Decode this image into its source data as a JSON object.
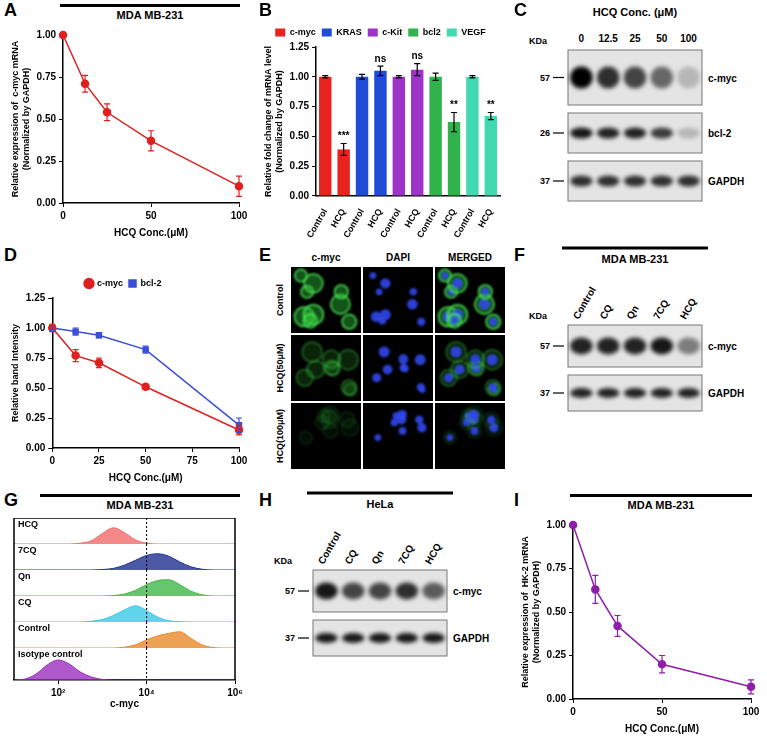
{
  "chart_data": [
    {
      "panel": "A",
      "type": "line",
      "title": "MDA MB-231",
      "x": [
        0,
        12.5,
        25,
        50,
        100
      ],
      "values": [
        1.0,
        0.71,
        0.54,
        0.37,
        0.1
      ],
      "errors": [
        0,
        0.05,
        0.05,
        0.06,
        0.06
      ],
      "color": "#e02020",
      "marker": "circle",
      "xlabel": "HCQ Conc.(μM)",
      "ylabel": [
        "Relative expression of  c-myc mRNA",
        "(Normalized by GAPDH)"
      ],
      "xlim": [
        0,
        100
      ],
      "xticks": [
        0,
        50,
        100
      ],
      "ylim": [
        0,
        1
      ],
      "yticks": [
        {
          "value": 0,
          "label": "0.00"
        },
        {
          "value": 0.25,
          "label": "0.25"
        },
        {
          "value": 0.5,
          "label": "0.50"
        },
        {
          "value": 0.75,
          "label": "0.75"
        },
        {
          "value": 1,
          "label": "1.00"
        }
      ],
      "grid": false
    },
    {
      "panel": "B",
      "type": "bar",
      "categories": [
        "Control",
        "HCQ",
        "Control",
        "HCQ",
        "Control",
        "HCQ",
        "Control",
        "HCQ",
        "Control",
        "HCQ"
      ],
      "ylabel": [
        "Relative fold change of mRNA level",
        "(Normalized by GAPDH)"
      ],
      "ylim": [
        0,
        1.25
      ],
      "yticks": [
        {
          "value": 0,
          "label": "0.00"
        },
        {
          "value": 0.25,
          "label": "0.25"
        },
        {
          "value": 0.5,
          "label": "0.50"
        },
        {
          "value": 0.75,
          "label": "0.75"
        },
        {
          "value": 1,
          "label": "1.00"
        },
        {
          "value": 1.25,
          "label": "1.25"
        }
      ],
      "grid": false,
      "legend": "top",
      "series": [
        {
          "name": "c-myc",
          "color": "#e8231e",
          "values": [
            1.0,
            0.39,
            null,
            null,
            null,
            null,
            null,
            null,
            null,
            null
          ],
          "errors": [
            0.01,
            0.05,
            null,
            null,
            null,
            null,
            null,
            null,
            null,
            null
          ],
          "significance": [
            null,
            "***",
            null,
            null,
            null,
            null,
            null,
            null,
            null,
            null
          ]
        },
        {
          "name": "KRAS",
          "color": "#1f4cd6",
          "values": [
            null,
            null,
            1.0,
            1.05,
            null,
            null,
            null,
            null,
            null,
            null
          ],
          "errors": [
            null,
            null,
            0.02,
            0.04,
            null,
            null,
            null,
            null,
            null,
            null
          ],
          "significance": [
            null,
            null,
            null,
            "ns",
            null,
            null,
            null,
            null,
            null,
            null
          ]
        },
        {
          "name": "c-Kit",
          "color": "#9d33c8",
          "values": [
            null,
            null,
            null,
            null,
            1.0,
            1.06,
            null,
            null,
            null,
            null
          ],
          "errors": [
            null,
            null,
            null,
            null,
            0.01,
            0.05,
            null,
            null,
            null,
            null
          ],
          "significance": [
            null,
            null,
            null,
            null,
            null,
            "ns",
            null,
            null,
            null,
            null
          ]
        },
        {
          "name": "bcl2",
          "color": "#2fb34a",
          "values": [
            null,
            null,
            null,
            null,
            null,
            null,
            1.0,
            0.62,
            null,
            null
          ],
          "errors": [
            null,
            null,
            null,
            null,
            null,
            null,
            0.03,
            0.08,
            null,
            null
          ],
          "significance": [
            null,
            null,
            null,
            null,
            null,
            null,
            null,
            "**",
            null,
            null
          ]
        },
        {
          "name": "VEGF",
          "color": "#40d9b0",
          "values": [
            null,
            null,
            null,
            null,
            null,
            null,
            null,
            null,
            1.0,
            0.67
          ],
          "errors": [
            null,
            null,
            null,
            null,
            null,
            null,
            null,
            null,
            0.01,
            0.03
          ],
          "significance": [
            null,
            null,
            null,
            null,
            null,
            null,
            null,
            null,
            null,
            "**"
          ]
        }
      ]
    },
    {
      "panel": "D",
      "type": "line",
      "x": [
        0,
        12.5,
        25,
        50,
        100
      ],
      "xlabel": "HCQ Conc.(μM)",
      "ylabel": [
        "Relative band Intensity"
      ],
      "xlim": [
        0,
        100
      ],
      "xticks": [
        0,
        25,
        50,
        75,
        100
      ],
      "ylim": [
        0,
        1.25
      ],
      "yticks": [
        {
          "value": 0,
          "label": "0.00"
        },
        {
          "value": 0.25,
          "label": "0.25"
        },
        {
          "value": 0.5,
          "label": "0.50"
        },
        {
          "value": 0.75,
          "label": "0.75"
        },
        {
          "value": 1,
          "label": "1.00"
        },
        {
          "value": 1.25,
          "label": "1.25"
        }
      ],
      "grid": false,
      "legend": "top",
      "series": [
        {
          "name": "c-myc",
          "color": "#e02020",
          "marker": "circle",
          "values": [
            1.0,
            0.77,
            0.71,
            0.51,
            0.15
          ],
          "errors": [
            0.03,
            0.05,
            0.04,
            0.02,
            0.04
          ]
        },
        {
          "name": "bcl-2",
          "color": "#3a4fd9",
          "marker": "square",
          "values": [
            1.0,
            0.97,
            0.94,
            0.82,
            0.19
          ],
          "errors": [
            0.02,
            0.03,
            0.02,
            0.03,
            0.06
          ]
        }
      ]
    },
    {
      "panel": "G",
      "type": "area",
      "title": "MDA MB-231",
      "xlabel": "c-myc",
      "x": [
        10,
        17.8,
        31.6,
        56.2,
        100,
        177.8,
        316.2,
        562.3,
        1000,
        1778,
        3162,
        5623,
        10000,
        17783,
        31623,
        56234,
        100000,
        177828,
        316228,
        562341,
        1000000
      ],
      "log": "x",
      "xlim": [
        10,
        1000000
      ],
      "xticks": [
        {
          "value": 100,
          "label": "10²"
        },
        {
          "value": 10000,
          "label": "10⁴"
        },
        {
          "value": 1000000,
          "label": "10⁶"
        }
      ],
      "ylim": [
        0,
        1.6
      ],
      "tick_labels": "x",
      "grid": false,
      "reference_x": 10000,
      "series": [
        {
          "name": "HCQ",
          "color": "#f06b6b",
          "values": [
            0,
            0,
            0,
            0,
            0,
            0,
            0.05,
            0.2,
            0.65,
            1,
            0.7,
            0.25,
            0.05,
            0,
            0,
            0,
            0,
            0,
            0,
            0,
            0
          ]
        },
        {
          "name": "7CQ",
          "color": "#1f2f8f",
          "values": [
            0,
            0,
            0,
            0,
            0,
            0,
            0,
            0,
            0.03,
            0.1,
            0.3,
            0.6,
            0.9,
            1,
            0.85,
            0.5,
            0.2,
            0.05,
            0,
            0,
            0
          ]
        },
        {
          "name": "Qn",
          "color": "#3fb84a",
          "values": [
            0,
            0,
            0,
            0,
            0,
            0,
            0,
            0,
            0,
            0.03,
            0.12,
            0.35,
            0.7,
            0.95,
            1,
            0.7,
            0.3,
            0.08,
            0,
            0,
            0
          ]
        },
        {
          "name": "CQ",
          "color": "#38c8e8",
          "values": [
            0,
            0,
            0,
            0,
            0,
            0,
            0,
            0.05,
            0.15,
            0.4,
            0.75,
            1,
            0.7,
            0.3,
            0.08,
            0.02,
            0,
            0,
            0,
            0,
            0
          ]
        },
        {
          "name": "Control",
          "color": "#e8892a",
          "values": [
            0,
            0,
            0,
            0,
            0,
            0,
            0,
            0,
            0,
            0,
            0.05,
            0.2,
            0.5,
            0.75,
            0.9,
            1,
            0.6,
            0.2,
            0.03,
            0,
            0
          ]
        },
        {
          "name": "Isotype control",
          "color": "#9b30c0",
          "values": [
            0,
            0.05,
            0.3,
            0.75,
            1,
            0.8,
            0.4,
            0.15,
            0.03,
            0,
            0,
            0,
            0,
            0,
            0,
            0,
            0,
            0,
            0,
            0,
            0
          ]
        }
      ]
    },
    {
      "panel": "I",
      "type": "line",
      "title": "MDA MB-231",
      "x": [
        0,
        12.5,
        25,
        50,
        100
      ],
      "values": [
        1.0,
        0.63,
        0.42,
        0.2,
        0.07
      ],
      "errors": [
        0,
        0.08,
        0.06,
        0.05,
        0.04
      ],
      "color": "#8e1fa8",
      "marker": "circle",
      "xlabel": "HCQ Conc.(μM)",
      "ylabel": [
        "Relative expression of  HK-2 mRNA",
        "(Normalized by GAPDH)"
      ],
      "xlim": [
        0,
        100
      ],
      "xticks": [
        0,
        50,
        100
      ],
      "ylim": [
        0,
        1
      ],
      "yticks": [
        {
          "value": 0,
          "label": "0.00"
        },
        {
          "value": 0.25,
          "label": "0.25"
        },
        {
          "value": 0.5,
          "label": "0.50"
        },
        {
          "value": 0.75,
          "label": "0.75"
        },
        {
          "value": 1,
          "label": "1.00"
        }
      ],
      "grid": false
    }
  ],
  "blots": [
    {
      "panel": "C",
      "title": "HCQ Conc. (μM)",
      "title_bar": false,
      "lanes": [
        "0",
        "12.5",
        "25",
        "50",
        "100"
      ],
      "unit": "KDa",
      "rows": [
        {
          "protein": "c-myc",
          "mw": 57,
          "intensity": [
            1.0,
            0.8,
            0.7,
            0.55,
            0.2
          ]
        },
        {
          "protein": "bcl-2",
          "mw": 26,
          "intensity": [
            0.9,
            0.85,
            0.85,
            0.75,
            0.2
          ]
        },
        {
          "protein": "GAPDH",
          "mw": 37,
          "intensity": [
            0.8,
            0.8,
            0.8,
            0.8,
            0.8
          ]
        }
      ]
    },
    {
      "panel": "F",
      "title": "MDA MB-231",
      "title_bar": true,
      "lanes": [
        "Control",
        "CQ",
        "Qn",
        "7CQ",
        "HCQ"
      ],
      "unit": "KDa",
      "rows": [
        {
          "protein": "c-myc",
          "mw": 57,
          "intensity": [
            0.85,
            0.85,
            0.85,
            0.9,
            0.45
          ]
        },
        {
          "protein": "GAPDH",
          "mw": 37,
          "intensity": [
            0.85,
            0.85,
            0.85,
            0.85,
            0.85
          ]
        }
      ]
    },
    {
      "panel": "H",
      "title": "HeLa",
      "title_bar": true,
      "lanes": [
        "Control",
        "CQ",
        "Qn",
        "7CQ",
        "HCQ"
      ],
      "unit": "KDa",
      "rows": [
        {
          "protein": "c-myc",
          "mw": 57,
          "intensity": [
            0.9,
            0.7,
            0.7,
            0.8,
            0.6
          ]
        },
        {
          "protein": "GAPDH",
          "mw": 37,
          "intensity": [
            0.9,
            0.9,
            0.9,
            0.9,
            0.9
          ]
        }
      ]
    }
  ],
  "microscopy": {
    "panel": "E",
    "columns": [
      "c-myc",
      "DAPI",
      "MERGED"
    ],
    "rows": [
      "Control",
      "HCQ(50μM)",
      "HCQ(100μM)"
    ]
  }
}
